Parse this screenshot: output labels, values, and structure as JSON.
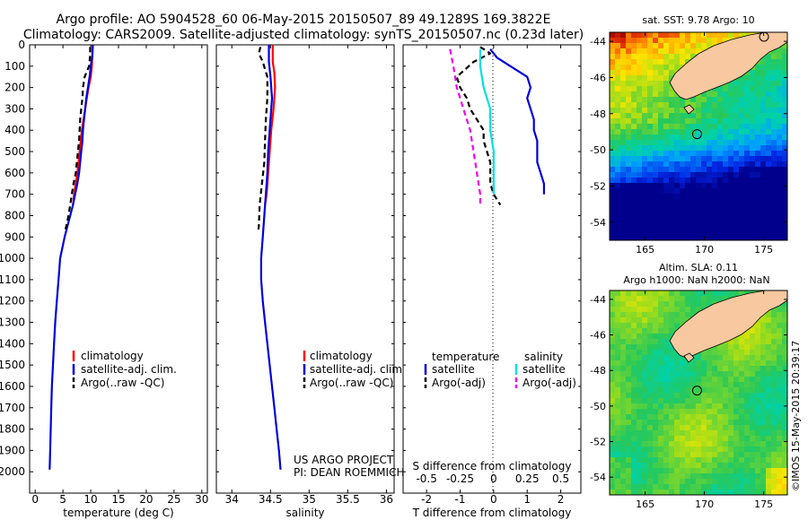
{
  "header": {
    "line1": "Argo profile: AO 5904528_60 06-May-2015 20150507_89 49.1289S 169.3822E",
    "line2": "Climatology: CARS2009. Satellite-adjusted climatology: synTS_20150507.nc (0.23d later)"
  },
  "footer": {
    "project": "US ARGO PROJECT",
    "pi": "PI: DEAN ROEMMICH",
    "stamp": "©IMOS 15-May-2015 20:39:17"
  },
  "colors": {
    "climatology": "#ff0000",
    "satellite": "#0000dd",
    "argo": "#000000",
    "salinity_satellite": "#00e0e0",
    "salinity_argo": "#ee00ee",
    "land": "#f8c8a0"
  },
  "chart_data": [
    {
      "type": "line",
      "id": "temperature",
      "xlabel": "temperature (deg C)",
      "ylabel": "",
      "xlim": [
        -1,
        31
      ],
      "ylim": [
        0,
        2100
      ],
      "y_reversed": true,
      "xticks": [
        0,
        5,
        10,
        15,
        20,
        25,
        30
      ],
      "yticks": [
        0,
        100,
        200,
        300,
        400,
        500,
        600,
        700,
        800,
        900,
        1000,
        1100,
        1200,
        1300,
        1400,
        1500,
        1600,
        1700,
        1800,
        1900,
        2000
      ],
      "legend": [
        "climatology",
        "satellite-adj. clim.",
        "Argo(..raw -QC)"
      ],
      "series": [
        {
          "name": "climatology",
          "style": "solid",
          "color": "#ff0000",
          "points": [
            [
              10.3,
              0
            ],
            [
              10.3,
              50
            ],
            [
              10.2,
              100
            ],
            [
              10.0,
              150
            ],
            [
              9.6,
              200
            ],
            [
              9.3,
              250
            ],
            [
              9.0,
              300
            ],
            [
              8.7,
              350
            ],
            [
              8.4,
              400
            ],
            [
              8.2,
              450
            ],
            [
              8.0,
              500
            ],
            [
              7.8,
              550
            ],
            [
              7.6,
              600
            ],
            [
              7.3,
              650
            ],
            [
              7.0,
              700
            ],
            [
              6.8,
              750
            ]
          ]
        },
        {
          "name": "satellite-adj. clim.",
          "style": "solid",
          "color": "#0000dd",
          "points": [
            [
              10.4,
              0
            ],
            [
              10.3,
              50
            ],
            [
              10.0,
              100
            ],
            [
              9.8,
              150
            ],
            [
              9.5,
              200
            ],
            [
              9.2,
              250
            ],
            [
              9.0,
              300
            ],
            [
              8.8,
              350
            ],
            [
              8.6,
              400
            ],
            [
              8.5,
              450
            ],
            [
              8.3,
              500
            ],
            [
              8.1,
              550
            ],
            [
              7.9,
              600
            ],
            [
              7.6,
              650
            ],
            [
              7.2,
              700
            ],
            [
              6.8,
              750
            ],
            [
              6.3,
              800
            ],
            [
              5.8,
              850
            ],
            [
              5.3,
              900
            ],
            [
              4.9,
              950
            ],
            [
              4.5,
              1000
            ],
            [
              4.2,
              1100
            ],
            [
              3.9,
              1200
            ],
            [
              3.6,
              1300
            ],
            [
              3.4,
              1400
            ],
            [
              3.2,
              1500
            ],
            [
              3.0,
              1600
            ],
            [
              2.9,
              1700
            ],
            [
              2.8,
              1800
            ],
            [
              2.7,
              1900
            ],
            [
              2.6,
              1990
            ]
          ]
        },
        {
          "name": "Argo(..raw -QC)",
          "style": "dashed",
          "color": "#000000",
          "points": [
            [
              9.9,
              10
            ],
            [
              9.9,
              50
            ],
            [
              9.7,
              100
            ],
            [
              8.9,
              150
            ],
            [
              8.6,
              200
            ],
            [
              8.5,
              250
            ],
            [
              8.3,
              300
            ],
            [
              8.1,
              350
            ],
            [
              8.0,
              400
            ],
            [
              7.9,
              450
            ],
            [
              7.7,
              500
            ],
            [
              7.5,
              550
            ],
            [
              7.3,
              600
            ],
            [
              6.9,
              650
            ],
            [
              6.6,
              700
            ],
            [
              6.3,
              750
            ],
            [
              6.0,
              800
            ],
            [
              5.6,
              850
            ],
            [
              5.3,
              880
            ]
          ]
        }
      ]
    },
    {
      "type": "line",
      "id": "salinity",
      "xlabel": "salinity",
      "ylabel": "",
      "xlim": [
        33.8,
        36.1
      ],
      "ylim": [
        0,
        2100
      ],
      "y_reversed": true,
      "xticks": [
        34,
        34.5,
        35,
        35.5,
        36
      ],
      "legend": [
        "climatology",
        "satellite-adj. clim.",
        "Argo(..raw -QC)"
      ],
      "series": [
        {
          "name": "climatology",
          "style": "solid",
          "color": "#ff0000",
          "points": [
            [
              34.53,
              0
            ],
            [
              34.53,
              80
            ],
            [
              34.55,
              130
            ],
            [
              34.56,
              200
            ],
            [
              34.54,
              300
            ],
            [
              34.51,
              400
            ],
            [
              34.49,
              500
            ],
            [
              34.47,
              600
            ],
            [
              34.45,
              700
            ],
            [
              34.43,
              750
            ]
          ]
        },
        {
          "name": "satellite-adj. clim.",
          "style": "solid",
          "color": "#0000dd",
          "points": [
            [
              34.48,
              0
            ],
            [
              34.48,
              80
            ],
            [
              34.5,
              150
            ],
            [
              34.52,
              250
            ],
            [
              34.49,
              400
            ],
            [
              34.47,
              500
            ],
            [
              34.46,
              600
            ],
            [
              34.44,
              700
            ],
            [
              34.42,
              800
            ],
            [
              34.4,
              900
            ],
            [
              34.38,
              1000
            ],
            [
              34.38,
              1100
            ],
            [
              34.4,
              1200
            ],
            [
              34.43,
              1300
            ],
            [
              34.46,
              1400
            ],
            [
              34.49,
              1500
            ],
            [
              34.52,
              1600
            ],
            [
              34.55,
              1700
            ],
            [
              34.58,
              1800
            ],
            [
              34.61,
              1900
            ],
            [
              34.63,
              1990
            ]
          ]
        },
        {
          "name": "Argo(..raw -QC)",
          "style": "dashed",
          "color": "#000000",
          "points": [
            [
              34.37,
              10
            ],
            [
              34.35,
              40
            ],
            [
              34.4,
              80
            ],
            [
              34.46,
              150
            ],
            [
              34.46,
              250
            ],
            [
              34.44,
              350
            ],
            [
              34.43,
              450
            ],
            [
              34.42,
              550
            ],
            [
              34.39,
              650
            ],
            [
              34.36,
              750
            ],
            [
              34.35,
              850
            ],
            [
              34.34,
              880
            ]
          ]
        }
      ]
    },
    {
      "type": "line",
      "id": "difference",
      "xlabel": "T difference from climatology",
      "xlabel2": "S difference from climatology",
      "xlim": [
        -2.7,
        2.6
      ],
      "ylim": [
        0,
        2100
      ],
      "y_reversed": true,
      "xticks": [
        -2,
        -1,
        0,
        1,
        2
      ],
      "xticks_s": [
        "-0.5",
        "-0.25",
        "0",
        "0.25",
        "0.5"
      ],
      "legend_temperature_title": "temperature",
      "legend_salinity_title": "salinity",
      "legend": [
        "satellite",
        "Argo(-adj)",
        "satellite",
        "Argo(-adj)"
      ],
      "series": [
        {
          "name": "satellite",
          "group": "temperature",
          "style": "solid",
          "color": "#0000dd",
          "points": [
            [
              -0.1,
              20
            ],
            [
              0.1,
              60
            ],
            [
              0.5,
              100
            ],
            [
              1.0,
              150
            ],
            [
              1.1,
              200
            ],
            [
              1.0,
              250
            ],
            [
              1.1,
              300
            ],
            [
              1.2,
              350
            ],
            [
              1.2,
              400
            ],
            [
              1.3,
              450
            ],
            [
              1.3,
              500
            ],
            [
              1.3,
              550
            ],
            [
              1.4,
              600
            ],
            [
              1.5,
              650
            ],
            [
              1.5,
              700
            ]
          ]
        },
        {
          "name": "Argo(-adj)",
          "group": "temperature",
          "style": "dashed",
          "color": "#000000",
          "points": [
            [
              -0.4,
              10
            ],
            [
              -0.1,
              40
            ],
            [
              -0.6,
              80
            ],
            [
              -1.1,
              150
            ],
            [
              -1.0,
              200
            ],
            [
              -0.8,
              250
            ],
            [
              -0.7,
              300
            ],
            [
              -0.5,
              350
            ],
            [
              -0.3,
              400
            ],
            [
              -0.3,
              450
            ],
            [
              -0.2,
              500
            ],
            [
              -0.1,
              550
            ],
            [
              -0.1,
              600
            ],
            [
              -0.1,
              650
            ],
            [
              0.0,
              700
            ],
            [
              0.2,
              750
            ]
          ]
        },
        {
          "name": "satellite",
          "group": "salinity",
          "style": "solid",
          "color": "#00e0e0",
          "points": [
            [
              -0.4,
              20
            ],
            [
              -0.4,
              100
            ],
            [
              -0.3,
              200
            ],
            [
              -0.1,
              300
            ],
            [
              -0.1,
              400
            ],
            [
              0.0,
              500
            ],
            [
              0.0,
              600
            ],
            [
              0.0,
              700
            ]
          ]
        },
        {
          "name": "Argo(-adj)",
          "group": "salinity",
          "style": "dashed",
          "color": "#ee00ee",
          "points": [
            [
              -1.3,
              20
            ],
            [
              -1.2,
              100
            ],
            [
              -1.1,
              200
            ],
            [
              -0.9,
              300
            ],
            [
              -0.7,
              400
            ],
            [
              -0.6,
              500
            ],
            [
              -0.5,
              600
            ],
            [
              -0.4,
              700
            ],
            [
              -0.4,
              750
            ]
          ]
        }
      ]
    },
    {
      "type": "heatmap",
      "id": "sst_map",
      "title": "sat. SST: 9.78 Argo: 10",
      "xlim": [
        162,
        177
      ],
      "ylim": [
        -55,
        -43.5
      ],
      "xticks": [
        165,
        170,
        175
      ],
      "yticks": [
        -44,
        -46,
        -48,
        -50,
        -52,
        -54
      ],
      "argo_marker": [
        169.38,
        -49.13
      ]
    },
    {
      "type": "heatmap",
      "id": "sla_map",
      "title": "Altim. SLA: 0.11",
      "subtitle": "Argo h1000: NaN h2000: NaN",
      "xlim": [
        162,
        177
      ],
      "ylim": [
        -55,
        -43.5
      ],
      "xticks": [
        165,
        170,
        175
      ],
      "yticks": [
        -44,
        -46,
        -48,
        -50,
        -52,
        -54
      ],
      "argo_marker": [
        169.38,
        -49.13
      ]
    }
  ]
}
